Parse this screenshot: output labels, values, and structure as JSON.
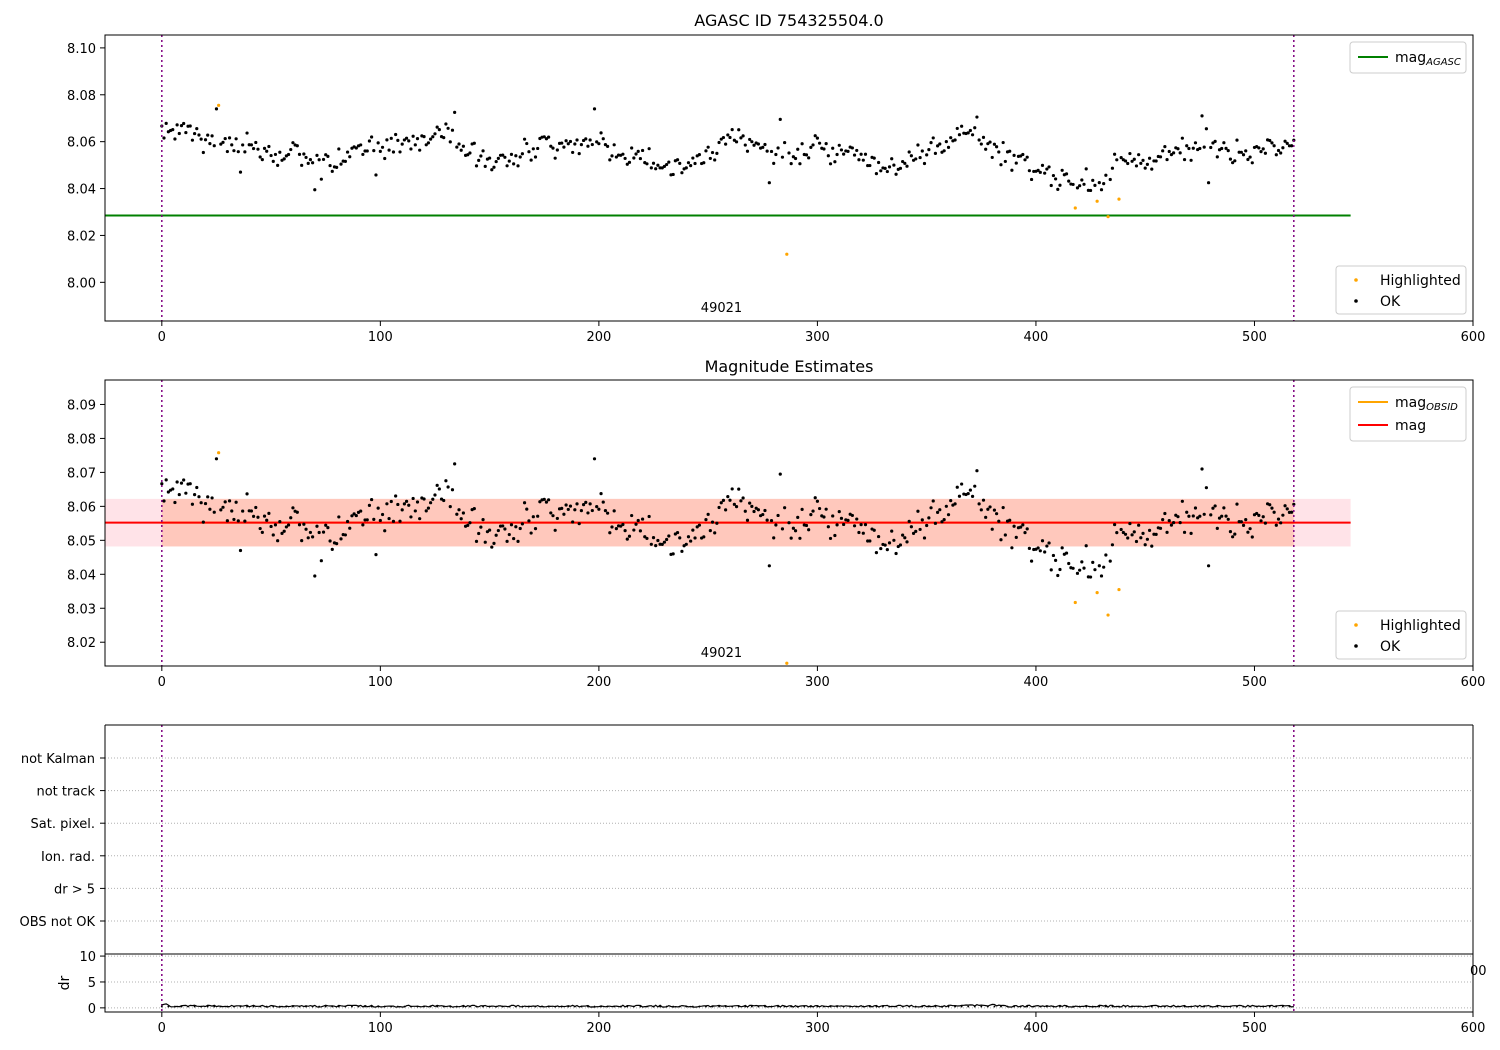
{
  "figure": {
    "colors": {
      "ok": "#000000",
      "highlighted": "#ffa500",
      "mag_agasc": "#008000",
      "mag_obsid": "#ffa500",
      "mag": "#ff0000",
      "band_obsid": "#ffa07a",
      "band_mag": "#ffc0cb",
      "obs_boundary": "#800080",
      "grid": "#b0b0b0"
    }
  },
  "chart_data": [
    {
      "type": "scatter",
      "title": "AGASC ID 754325504.0",
      "xlim": [
        -26,
        600
      ],
      "ylim": [
        7.9835,
        8.1055
      ],
      "xticks": [
        0,
        100,
        200,
        300,
        400,
        500,
        600
      ],
      "yticks": [
        8.0,
        8.02,
        8.04,
        8.06,
        8.08,
        8.1
      ],
      "ytick_decimals": 2,
      "obsid_label": {
        "text": "49021",
        "x": 259
      },
      "obs_boundaries": [
        0,
        518
      ],
      "hlines": [
        {
          "name": "mag_AGASC",
          "legend_main": "mag",
          "legend_sub": "AGASC",
          "y": 8.0285,
          "x": [
            -26,
            544
          ],
          "color": "#008000"
        }
      ],
      "bands": [],
      "legend_lines_position": "upper right",
      "legend_points_position": "lower right",
      "legend_points": [
        "Highlighted",
        "OK"
      ],
      "highlighted_points": [
        {
          "x": 26,
          "y": 8.0755
        },
        {
          "x": 286,
          "y": 8.012
        },
        {
          "x": 418,
          "y": 8.0317
        },
        {
          "x": 428,
          "y": 8.0346
        },
        {
          "x": 433,
          "y": 8.028
        },
        {
          "x": 438,
          "y": 8.0355
        }
      ],
      "ok_series": {
        "x_start": 0,
        "x_end": 518,
        "x_step": 1,
        "knots": [
          [
            0,
            8.064
          ],
          [
            10,
            8.066
          ],
          [
            20,
            8.06
          ],
          [
            30,
            8.06
          ],
          [
            40,
            8.059
          ],
          [
            50,
            8.054
          ],
          [
            60,
            8.055
          ],
          [
            70,
            8.051
          ],
          [
            80,
            8.051
          ],
          [
            90,
            8.057
          ],
          [
            100,
            8.058
          ],
          [
            110,
            8.06
          ],
          [
            120,
            8.061
          ],
          [
            130,
            8.065
          ],
          [
            140,
            8.055
          ],
          [
            150,
            8.051
          ],
          [
            160,
            8.053
          ],
          [
            170,
            8.058
          ],
          [
            180,
            8.06
          ],
          [
            190,
            8.058
          ],
          [
            200,
            8.06
          ],
          [
            210,
            8.054
          ],
          [
            220,
            8.053
          ],
          [
            230,
            8.05
          ],
          [
            240,
            8.051
          ],
          [
            250,
            8.055
          ],
          [
            260,
            8.062
          ],
          [
            270,
            8.06
          ],
          [
            280,
            8.055
          ],
          [
            290,
            8.052
          ],
          [
            300,
            8.058
          ],
          [
            310,
            8.055
          ],
          [
            320,
            8.053
          ],
          [
            330,
            8.05
          ],
          [
            340,
            8.05
          ],
          [
            350,
            8.058
          ],
          [
            360,
            8.061
          ],
          [
            370,
            8.066
          ],
          [
            380,
            8.058
          ],
          [
            390,
            8.053
          ],
          [
            400,
            8.047
          ],
          [
            410,
            8.045
          ],
          [
            420,
            8.042
          ],
          [
            430,
            8.041
          ],
          [
            440,
            8.053
          ],
          [
            450,
            8.053
          ],
          [
            460,
            8.055
          ],
          [
            470,
            8.057
          ],
          [
            480,
            8.056
          ],
          [
            490,
            8.055
          ],
          [
            500,
            8.057
          ],
          [
            510,
            8.056
          ],
          [
            518,
            8.058
          ]
        ],
        "noise_amplitude": 0.004,
        "spikes": [
          {
            "x": 70,
            "y": 8.0395
          },
          {
            "x": 73,
            "y": 8.044
          },
          {
            "x": 198,
            "y": 8.074
          },
          {
            "x": 134,
            "y": 8.0725
          },
          {
            "x": 373,
            "y": 8.0705
          },
          {
            "x": 476,
            "y": 8.071
          },
          {
            "x": 478,
            "y": 8.0655
          },
          {
            "x": 479,
            "y": 8.0425
          },
          {
            "x": 278,
            "y": 8.0425
          },
          {
            "x": 283,
            "y": 8.0695
          },
          {
            "x": 25,
            "y": 8.074
          },
          {
            "x": 36,
            "y": 8.047
          },
          {
            "x": 98,
            "y": 8.0458
          },
          {
            "x": 389,
            "y": 8.0478
          }
        ]
      }
    },
    {
      "type": "scatter",
      "title": "Magnitude Estimates",
      "xlim": [
        -26,
        600
      ],
      "ylim": [
        8.013,
        8.0972
      ],
      "xticks": [
        0,
        100,
        200,
        300,
        400,
        500,
        600
      ],
      "yticks": [
        8.02,
        8.03,
        8.04,
        8.05,
        8.06,
        8.07,
        8.08,
        8.09
      ],
      "ytick_decimals": 2,
      "obsid_label": {
        "text": "49021",
        "x": 259
      },
      "obs_boundaries": [
        0,
        518
      ],
      "hlines": [
        {
          "name": "mag_OBSID",
          "legend_main": "mag",
          "legend_sub": "OBSID",
          "y": 8.0552,
          "x": [
            0,
            518
          ],
          "color": "#ffa500"
        },
        {
          "name": "mag",
          "legend_main": "mag",
          "legend_sub": "",
          "y": 8.0552,
          "x": [
            -26,
            544
          ],
          "color": "#ff0000"
        }
      ],
      "bands": [
        {
          "y0": 8.0482,
          "y1": 8.0622,
          "x": [
            -26,
            544
          ],
          "color": "#ffc0cb",
          "opacity": 0.45
        },
        {
          "y0": 8.0482,
          "y1": 8.0622,
          "x": [
            0,
            518
          ],
          "color": "#ffa07a",
          "opacity": 0.4
        }
      ],
      "legend_lines_position": "upper right",
      "legend_points_position": "lower right",
      "legend_points": [
        "Highlighted",
        "OK"
      ],
      "highlighted_points": [
        {
          "x": 26,
          "y": 8.0758
        },
        {
          "x": 286,
          "y": 8.0138
        },
        {
          "x": 418,
          "y": 8.0317
        },
        {
          "x": 428,
          "y": 8.0346
        },
        {
          "x": 433,
          "y": 8.028
        },
        {
          "x": 438,
          "y": 8.0355
        }
      ],
      "ok_series": "same_as_panel_0"
    },
    {
      "type": "scatter",
      "title": "",
      "xlim": [
        -26,
        600
      ],
      "flag_labels": [
        "not Kalman",
        "not track",
        "Sat. pixel.",
        "Ion. rad.",
        "dr > 5",
        "OBS not OK"
      ],
      "flag_points": [],
      "obs_boundaries": [
        0,
        518
      ]
    },
    {
      "type": "line",
      "title": "",
      "ylabel": "dr",
      "xlim": [
        -26,
        600
      ],
      "ylim": [
        -0.8,
        10.4
      ],
      "xticks": [
        0,
        100,
        200,
        300,
        400,
        500,
        600
      ],
      "yticks": [
        0,
        5,
        10
      ],
      "right_edge_tick_label": "00",
      "obs_boundaries": [
        0,
        518
      ],
      "series": [
        {
          "x_start": 0,
          "x_end": 518,
          "baseline": 0.15,
          "amplitude": 0.35
        }
      ]
    }
  ]
}
